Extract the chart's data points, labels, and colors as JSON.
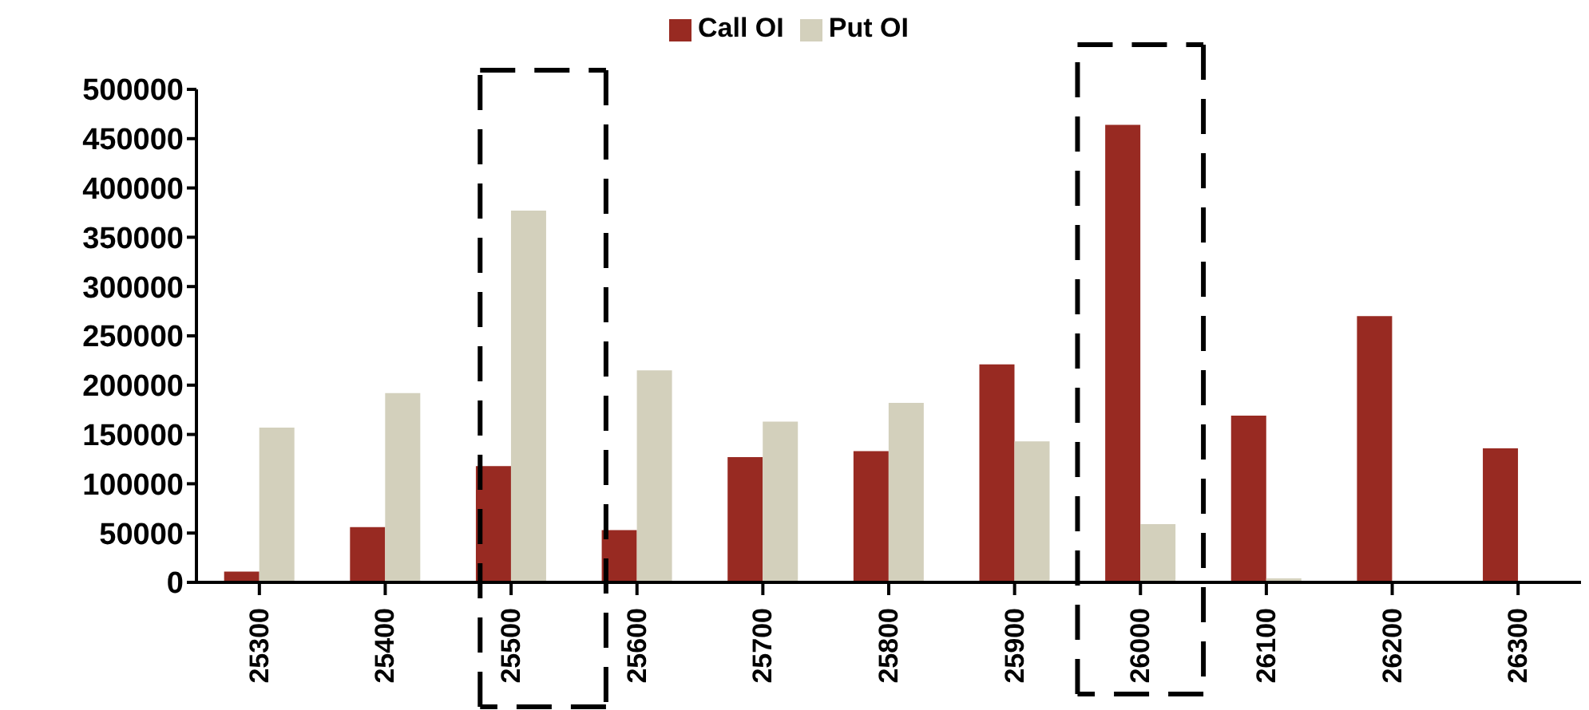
{
  "chart_data": {
    "type": "bar",
    "categories": [
      "25300",
      "25400",
      "25500",
      "25600",
      "25700",
      "25800",
      "25900",
      "26000",
      "26100",
      "26200",
      "26300"
    ],
    "series": [
      {
        "name": "Call OI",
        "color": "#982a22",
        "values": [
          11000,
          56000,
          118000,
          53000,
          127000,
          133000,
          221000,
          464000,
          169000,
          270000,
          136000
        ]
      },
      {
        "name": "Put OI",
        "color": "#d3d0bc",
        "values": [
          157000,
          192000,
          377000,
          215000,
          163000,
          182000,
          143000,
          59000,
          4000,
          0,
          0
        ]
      }
    ],
    "ylim": [
      0,
      500000
    ],
    "yticks": [
      0,
      50000,
      100000,
      150000,
      200000,
      250000,
      300000,
      350000,
      400000,
      450000,
      500000
    ],
    "grid": false,
    "legend": "top"
  }
}
